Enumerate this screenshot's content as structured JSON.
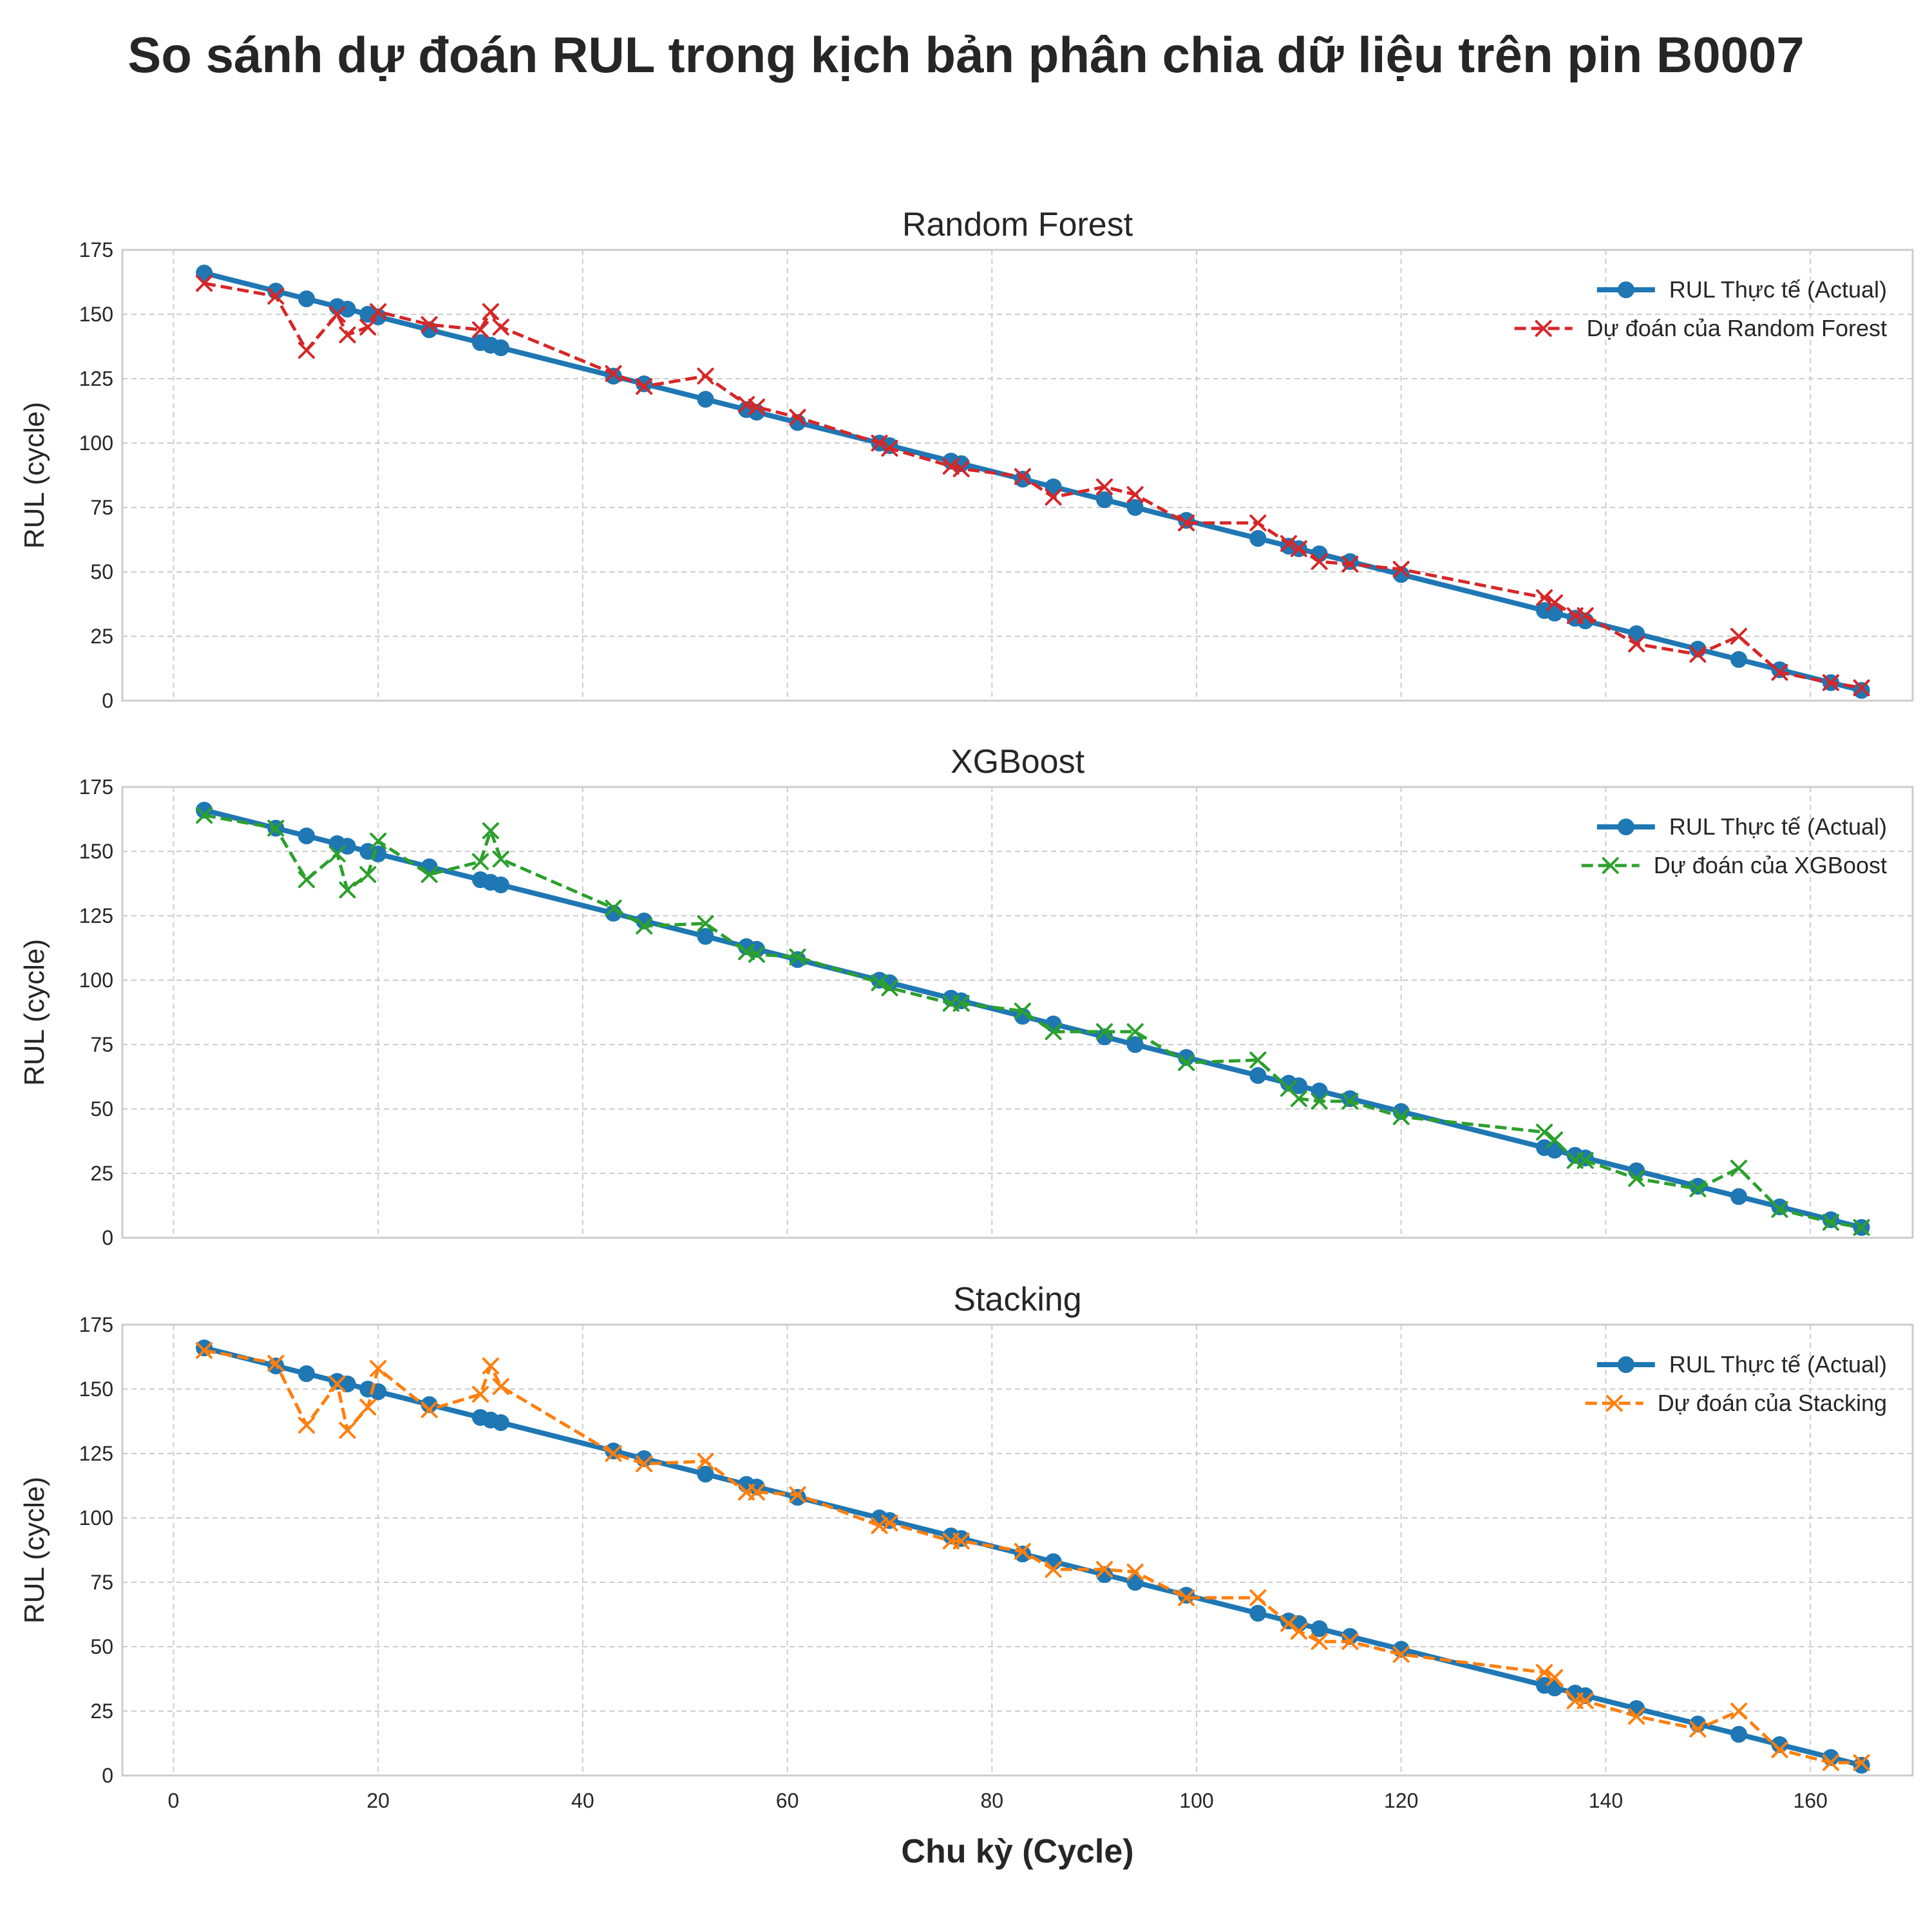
{
  "title": "So sánh dự đoán RUL trong kịch bản phân chia dữ liệu trên pin B0007",
  "colors": {
    "actual": "#1f77b4",
    "random_forest": "#d62728",
    "xgboost": "#2ca02c",
    "stacking": "#ff7f0e",
    "grid": "#cccccc",
    "spine": "#cccccc"
  },
  "chart_data": [
    {
      "type": "line",
      "title": "Random Forest",
      "xlabel": "",
      "ylabel": "RUL (cycle)",
      "xlim": [
        -5,
        170
      ],
      "ylim": [
        0,
        175
      ],
      "xticks": [
        0,
        20,
        40,
        60,
        80,
        100,
        120,
        140,
        160
      ],
      "yticks": [
        0,
        25,
        50,
        75,
        100,
        125,
        150,
        175
      ],
      "grid": true,
      "legend_position": "top-right",
      "series": [
        {
          "name": "RUL Thực tế (Actual)",
          "color": "#1f77b4",
          "style": "solid",
          "marker": "circle",
          "x": [
            3,
            10,
            13,
            16,
            17,
            19,
            20,
            25,
            30,
            31,
            32,
            43,
            46,
            52,
            56,
            57,
            61,
            69,
            70,
            76,
            77,
            83,
            86,
            91,
            94,
            99,
            106,
            109,
            110,
            112,
            115,
            120,
            134,
            135,
            137,
            138,
            143,
            149,
            153,
            157,
            162,
            165
          ],
          "y": [
            166,
            159,
            156,
            153,
            152,
            150,
            149,
            144,
            139,
            138,
            137,
            126,
            123,
            117,
            113,
            112,
            108,
            100,
            99,
            93,
            92,
            86,
            83,
            78,
            75,
            70,
            63,
            60,
            59,
            57,
            54,
            49,
            35,
            34,
            32,
            31,
            26,
            20,
            16,
            12,
            7,
            4
          ]
        },
        {
          "name": "Dự đoán của Random Forest",
          "color": "#d62728",
          "style": "dashed",
          "marker": "x",
          "x": [
            3,
            10,
            13,
            16,
            17,
            19,
            20,
            25,
            30,
            31,
            32,
            43,
            46,
            52,
            56,
            57,
            61,
            69,
            70,
            76,
            77,
            83,
            86,
            91,
            94,
            99,
            106,
            109,
            110,
            112,
            115,
            120,
            134,
            135,
            137,
            138,
            143,
            149,
            153,
            157,
            162,
            165
          ],
          "y": [
            162,
            157,
            136,
            150,
            142,
            145,
            151,
            146,
            144,
            151,
            145,
            127,
            122,
            126,
            115,
            114,
            110,
            100,
            98,
            91,
            90,
            87,
            79,
            83,
            80,
            69,
            69,
            61,
            59,
            54,
            53,
            51,
            40,
            38,
            33,
            33,
            22,
            18,
            25,
            11,
            7,
            5
          ]
        }
      ]
    },
    {
      "type": "line",
      "title": "XGBoost",
      "xlabel": "",
      "ylabel": "RUL (cycle)",
      "xlim": [
        -5,
        170
      ],
      "ylim": [
        0,
        175
      ],
      "xticks": [
        0,
        20,
        40,
        60,
        80,
        100,
        120,
        140,
        160
      ],
      "yticks": [
        0,
        25,
        50,
        75,
        100,
        125,
        150,
        175
      ],
      "grid": true,
      "legend_position": "top-right",
      "series": [
        {
          "name": "RUL Thực tế (Actual)",
          "color": "#1f77b4",
          "style": "solid",
          "marker": "circle",
          "x": [
            3,
            10,
            13,
            16,
            17,
            19,
            20,
            25,
            30,
            31,
            32,
            43,
            46,
            52,
            56,
            57,
            61,
            69,
            70,
            76,
            77,
            83,
            86,
            91,
            94,
            99,
            106,
            109,
            110,
            112,
            115,
            120,
            134,
            135,
            137,
            138,
            143,
            149,
            153,
            157,
            162,
            165
          ],
          "y": [
            166,
            159,
            156,
            153,
            152,
            150,
            149,
            144,
            139,
            138,
            137,
            126,
            123,
            117,
            113,
            112,
            108,
            100,
            99,
            93,
            92,
            86,
            83,
            78,
            75,
            70,
            63,
            60,
            59,
            57,
            54,
            49,
            35,
            34,
            32,
            31,
            26,
            20,
            16,
            12,
            7,
            4
          ]
        },
        {
          "name": "Dự đoán của XGBoost",
          "color": "#2ca02c",
          "style": "dashed",
          "marker": "x",
          "x": [
            3,
            10,
            13,
            16,
            17,
            19,
            20,
            25,
            30,
            31,
            32,
            43,
            46,
            52,
            56,
            57,
            61,
            69,
            70,
            76,
            77,
            83,
            86,
            91,
            94,
            99,
            106,
            109,
            110,
            112,
            115,
            120,
            134,
            135,
            137,
            138,
            143,
            149,
            153,
            157,
            162,
            165
          ],
          "y": [
            164,
            159,
            139,
            149,
            135,
            141,
            154,
            141,
            146,
            158,
            147,
            128,
            121,
            122,
            111,
            110,
            109,
            99,
            97,
            91,
            91,
            88,
            80,
            80,
            80,
            68,
            69,
            58,
            54,
            53,
            53,
            47,
            41,
            38,
            30,
            30,
            23,
            19,
            27,
            11,
            6,
            4
          ]
        }
      ]
    },
    {
      "type": "line",
      "title": "Stacking",
      "xlabel": "Chu kỳ (Cycle)",
      "ylabel": "RUL (cycle)",
      "xlim": [
        -5,
        170
      ],
      "ylim": [
        0,
        175
      ],
      "xticks": [
        0,
        20,
        40,
        60,
        80,
        100,
        120,
        140,
        160
      ],
      "yticks": [
        0,
        25,
        50,
        75,
        100,
        125,
        150,
        175
      ],
      "grid": true,
      "legend_position": "top-right",
      "series": [
        {
          "name": "RUL Thực tế (Actual)",
          "color": "#1f77b4",
          "style": "solid",
          "marker": "circle",
          "x": [
            3,
            10,
            13,
            16,
            17,
            19,
            20,
            25,
            30,
            31,
            32,
            43,
            46,
            52,
            56,
            57,
            61,
            69,
            70,
            76,
            77,
            83,
            86,
            91,
            94,
            99,
            106,
            109,
            110,
            112,
            115,
            120,
            134,
            135,
            137,
            138,
            143,
            149,
            153,
            157,
            162,
            165
          ],
          "y": [
            166,
            159,
            156,
            153,
            152,
            150,
            149,
            144,
            139,
            138,
            137,
            126,
            123,
            117,
            113,
            112,
            108,
            100,
            99,
            93,
            92,
            86,
            83,
            78,
            75,
            70,
            63,
            60,
            59,
            57,
            54,
            49,
            35,
            34,
            32,
            31,
            26,
            20,
            16,
            12,
            7,
            4
          ]
        },
        {
          "name": "Dự đoán của Stacking",
          "color": "#ff7f0e",
          "style": "dashed",
          "marker": "x",
          "x": [
            3,
            10,
            13,
            16,
            17,
            19,
            20,
            25,
            30,
            31,
            32,
            43,
            46,
            52,
            56,
            57,
            61,
            69,
            70,
            76,
            77,
            83,
            86,
            91,
            94,
            99,
            106,
            109,
            110,
            112,
            115,
            120,
            134,
            135,
            137,
            138,
            143,
            149,
            153,
            157,
            162,
            165
          ],
          "y": [
            165,
            160,
            136,
            152,
            134,
            143,
            158,
            142,
            148,
            159,
            151,
            125,
            121,
            122,
            110,
            110,
            109,
            97,
            98,
            91,
            91,
            87,
            80,
            80,
            79,
            69,
            69,
            59,
            56,
            52,
            52,
            47,
            40,
            38,
            29,
            29,
            23,
            18,
            25,
            10,
            5,
            5
          ]
        }
      ]
    }
  ]
}
